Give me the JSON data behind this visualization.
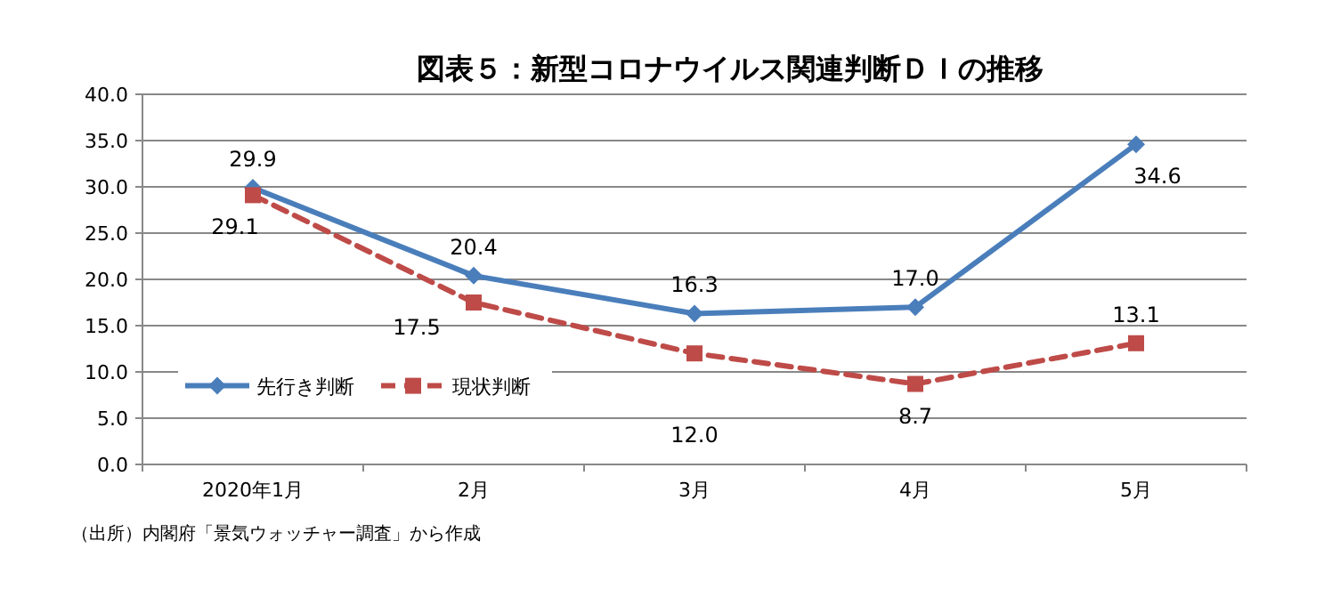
{
  "chart_data": {
    "type": "line",
    "title": "図表５：新型コロナウイルス関連判断ＤＩの推移",
    "categories": [
      "2020年1月",
      "2月",
      "3月",
      "4月",
      "5月"
    ],
    "series": [
      {
        "name": "先行き判断",
        "color": "#4a7ebb",
        "marker": "diamond",
        "line_style": "solid",
        "values": [
          29.9,
          20.4,
          16.3,
          17.0,
          34.6
        ],
        "value_labels": [
          "29.9",
          "20.4",
          "16.3",
          "17.0",
          "34.6"
        ]
      },
      {
        "name": "現状判断",
        "color": "#be4b48",
        "marker": "square",
        "line_style": "dashed",
        "values": [
          29.1,
          17.5,
          12.0,
          8.7,
          13.1
        ],
        "value_labels": [
          "29.1",
          "17.5",
          "12.0",
          "8.7",
          "13.1"
        ]
      }
    ],
    "ylim": [
      0,
      40
    ],
    "yticks": [
      {
        "value": 0,
        "label": "0.0"
      },
      {
        "value": 5,
        "label": "5.0"
      },
      {
        "value": 10,
        "label": "10.0"
      },
      {
        "value": 15,
        "label": "15.0"
      },
      {
        "value": 20,
        "label": "20.0"
      },
      {
        "value": 25,
        "label": "25.0"
      },
      {
        "value": 30,
        "label": "30.0"
      },
      {
        "value": 35,
        "label": "35.0"
      },
      {
        "value": 40,
        "label": "40.0"
      }
    ],
    "grid": "y",
    "legend": "bottom left",
    "annotations": [
      "（出所）内閣府「景気ウォッチャー調査」から作成"
    ]
  }
}
